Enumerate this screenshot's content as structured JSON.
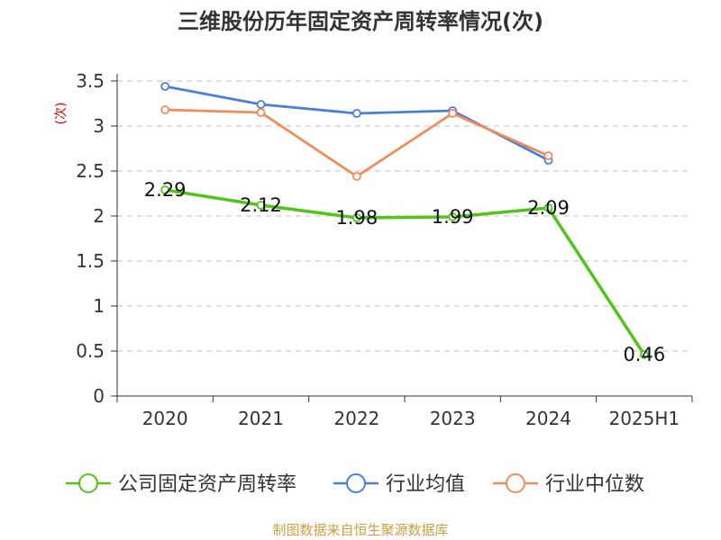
{
  "chart_data": {
    "type": "line",
    "title": "三维股份历年固定资产周转率情况(次)",
    "ylabel": "(次)",
    "xlabel": "",
    "categories": [
      "2020",
      "2021",
      "2022",
      "2023",
      "2024",
      "2025H1"
    ],
    "ylim": [
      0,
      3.5
    ],
    "yticks": [
      "0",
      "0.5",
      "1",
      "1.5",
      "2",
      "2.5",
      "3",
      "3.5"
    ],
    "grid": true,
    "legend_position": "bottom",
    "series": [
      {
        "name": "公司固定资产周转率",
        "color": "#52c41a",
        "values": [
          2.29,
          2.12,
          1.98,
          1.99,
          2.09,
          0.46
        ],
        "labels": [
          "2.29",
          "2.12",
          "1.98",
          "1.99",
          "2.09",
          "0.46"
        ]
      },
      {
        "name": "行业均值",
        "color": "#4a7fd8",
        "values": [
          3.44,
          3.24,
          3.14,
          3.17,
          2.62,
          null
        ]
      },
      {
        "name": "行业中位数",
        "color": "#f08c5a",
        "values": [
          3.18,
          3.15,
          2.44,
          3.14,
          2.67,
          null
        ]
      }
    ],
    "source": "制图数据来自恒生聚源数据库",
    "colors": {
      "axis": "#333333",
      "grid": "#cccccc",
      "ylabel": "#cc0000",
      "source": "#c8a040"
    }
  }
}
